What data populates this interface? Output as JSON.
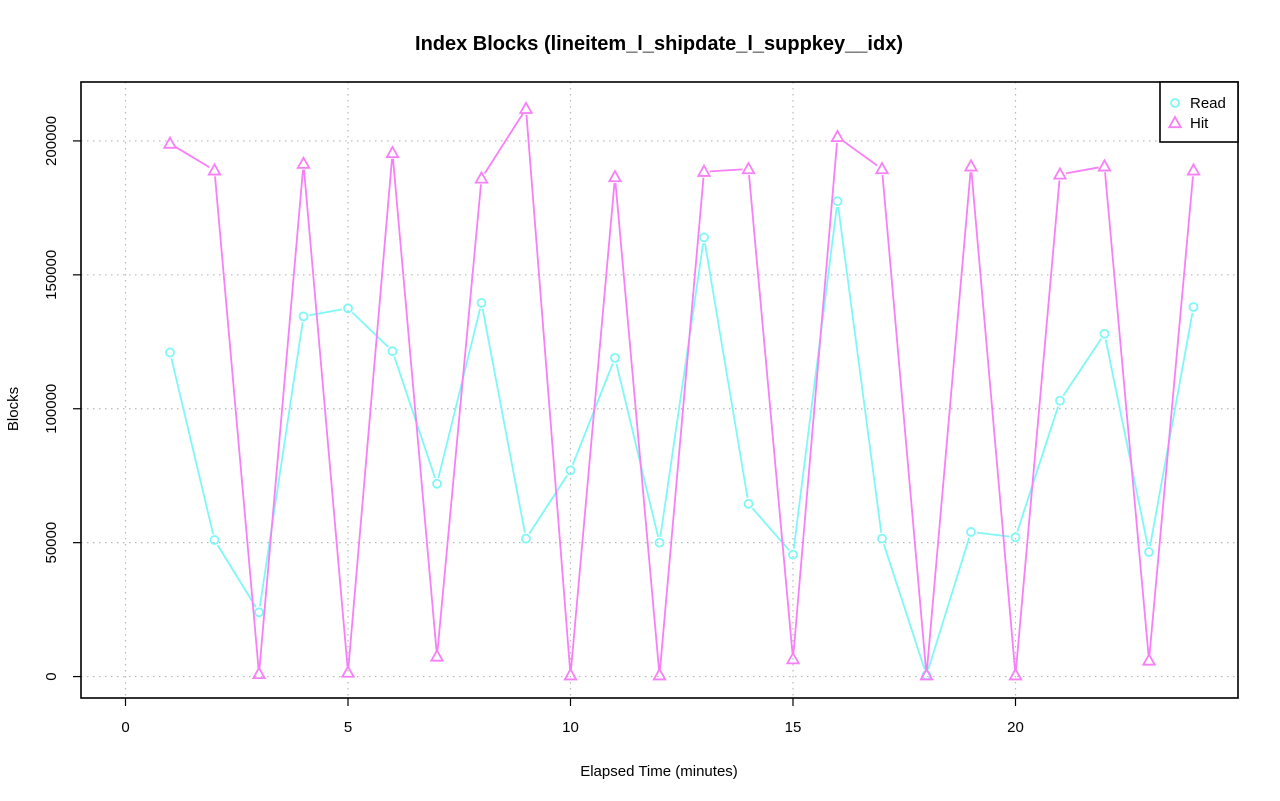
{
  "chart_data": {
    "type": "line",
    "title": "Index Blocks (lineitem_l_shipdate_l_suppkey__idx)",
    "xlabel": "Elapsed Time (minutes)",
    "ylabel": "Blocks",
    "xlim": [
      -1,
      25
    ],
    "ylim": [
      -8000,
      222000
    ],
    "xticks": [
      0,
      5,
      10,
      15,
      20
    ],
    "yticks": [
      0,
      50000,
      100000,
      150000,
      200000
    ],
    "grid": true,
    "legend_position": "top-right",
    "x": [
      1,
      2,
      3,
      4,
      5,
      6,
      7,
      8,
      9,
      10,
      11,
      12,
      13,
      14,
      15,
      16,
      17,
      18,
      19,
      20,
      21,
      22,
      23,
      24
    ],
    "series": [
      {
        "name": "Read",
        "color": "#7ff7f7",
        "marker": "circle",
        "values": [
          121000,
          51000,
          24000,
          134500,
          137500,
          121500,
          72000,
          139500,
          51500,
          77000,
          119000,
          50000,
          164000,
          64500,
          45500,
          177500,
          51500,
          500,
          54000,
          52000,
          103000,
          128000,
          46500,
          138000
        ]
      },
      {
        "name": "Hit",
        "color": "#f77ff7",
        "marker": "triangle",
        "values": [
          199000,
          189000,
          1000,
          191500,
          1500,
          195500,
          7500,
          186000,
          212000,
          500,
          186500,
          500,
          188500,
          189500,
          6500,
          201500,
          189500,
          500,
          190500,
          500,
          187500,
          190500,
          6000,
          189000
        ]
      }
    ]
  }
}
